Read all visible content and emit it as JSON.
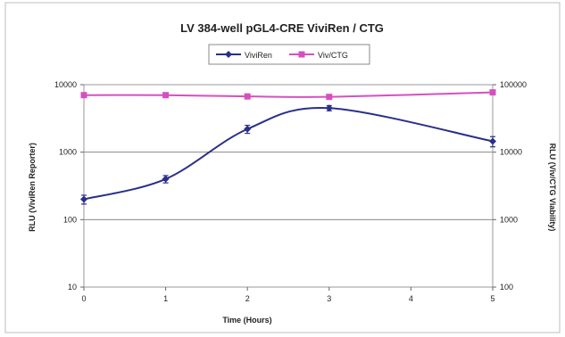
{
  "chart_data": {
    "type": "line",
    "title": "LV 384-well pGL4-CRE ViviRen / CTG",
    "xlabel": "Time (Hours)",
    "ylabel_left": "RLU (ViviRen Reporter)",
    "ylabel_right": "RLU (Viv/CTG Viability)",
    "x_ticks": [
      "0",
      "1",
      "2",
      "3",
      "4",
      "5"
    ],
    "xlim": [
      0,
      5
    ],
    "y_left": {
      "scale": "log",
      "ylim": [
        10,
        10000
      ],
      "ticks": [
        "10",
        "100",
        "1000",
        "10000"
      ]
    },
    "y_right": {
      "scale": "log",
      "ylim": [
        100,
        100000
      ],
      "ticks": [
        "100",
        "1000",
        "10000",
        "100000"
      ]
    },
    "grid": "major horizontal",
    "legend_position": "top-center",
    "x": [
      0,
      1,
      2,
      3,
      5
    ],
    "series": [
      {
        "name": "ViviRen",
        "axis": "left",
        "color": "#2a2f8a",
        "marker": "diamond",
        "values": [
          200,
          400,
          2200,
          4500,
          1450
        ],
        "errors": [
          30,
          50,
          300,
          400,
          250
        ]
      },
      {
        "name": "Viv/CTG",
        "axis": "right",
        "color": "#d64fc0",
        "marker": "square",
        "values": [
          70000,
          70000,
          67000,
          66000,
          77000
        ],
        "errors": [
          0,
          0,
          0,
          0,
          0
        ]
      }
    ],
    "colors": {
      "plot_background": "#ffffff",
      "gridline": "#888888",
      "frame": "#999999"
    }
  }
}
